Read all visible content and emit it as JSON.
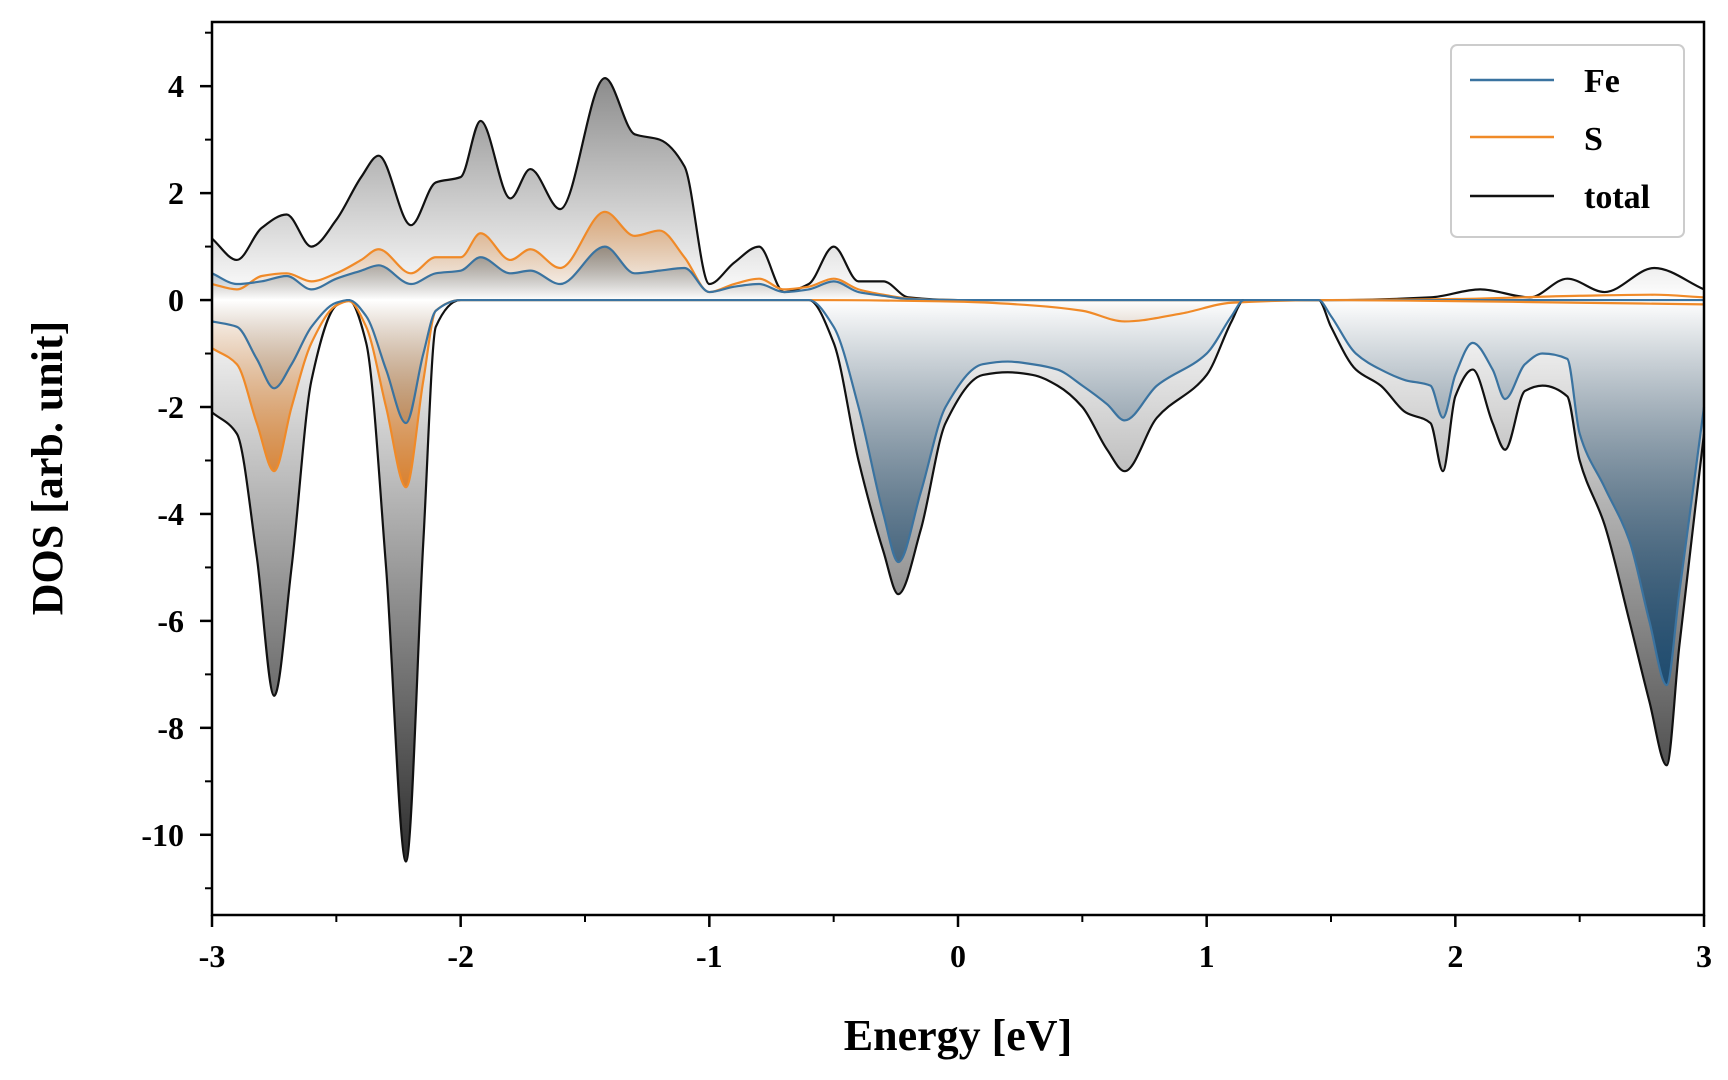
{
  "chart_data": {
    "type": "line",
    "xlabel": "Energy [eV]",
    "ylabel": "DOS [arb. unit]",
    "xlim": [
      -3,
      3
    ],
    "ylim": [
      -11.5,
      5.2
    ],
    "xticks": [
      -3,
      -2,
      -1,
      0,
      1,
      2,
      3
    ],
    "xtick_labels": [
      "-3",
      "-2",
      "-1",
      "0",
      "1",
      "2",
      "3"
    ],
    "yticks": [
      -10,
      -8,
      -6,
      -4,
      -2,
      0,
      2,
      4
    ],
    "ytick_labels": [
      "-10",
      "-8",
      "-6",
      "-4",
      "-2",
      "0",
      "2",
      "4"
    ],
    "grid": false,
    "legend_position": "top-right",
    "colors": {
      "Fe": "#3a73a0",
      "S": "#f08a28",
      "total": "#111111"
    },
    "series": [
      {
        "name": "Fe",
        "spin": "up",
        "x": [
          -3.0,
          -2.9,
          -2.8,
          -2.7,
          -2.6,
          -2.5,
          -2.4,
          -2.33,
          -2.2,
          -2.1,
          -2.0,
          -1.92,
          -1.8,
          -1.72,
          -1.6,
          -1.42,
          -1.3,
          -1.2,
          -1.1,
          -1.0,
          -0.9,
          -0.8,
          -0.7,
          -0.6,
          -0.5,
          -0.4,
          -0.3,
          -0.2,
          0.0,
          0.5,
          1.0,
          1.5,
          2.0,
          2.5,
          3.0
        ],
        "values": [
          0.5,
          0.3,
          0.35,
          0.45,
          0.2,
          0.4,
          0.55,
          0.65,
          0.3,
          0.5,
          0.55,
          0.8,
          0.5,
          0.55,
          0.3,
          1.0,
          0.5,
          0.55,
          0.6,
          0.15,
          0.25,
          0.3,
          0.15,
          0.2,
          0.35,
          0.15,
          0.08,
          0.02,
          0.0,
          0.0,
          0.0,
          0.0,
          0.0,
          0.0,
          0.0
        ]
      },
      {
        "name": "S",
        "spin": "up",
        "x": [
          -3.0,
          -2.9,
          -2.8,
          -2.7,
          -2.6,
          -2.5,
          -2.4,
          -2.33,
          -2.2,
          -2.1,
          -2.0,
          -1.92,
          -1.8,
          -1.72,
          -1.6,
          -1.42,
          -1.3,
          -1.2,
          -1.1,
          -1.0,
          -0.9,
          -0.8,
          -0.7,
          -0.6,
          -0.5,
          -0.4,
          -0.3,
          -0.2,
          0.0,
          0.5,
          1.0,
          1.2,
          1.5,
          2.0,
          2.5,
          2.8,
          3.0
        ],
        "values": [
          0.3,
          0.2,
          0.45,
          0.5,
          0.35,
          0.5,
          0.75,
          0.95,
          0.5,
          0.8,
          0.8,
          1.25,
          0.75,
          0.95,
          0.6,
          1.65,
          1.2,
          1.3,
          0.8,
          0.15,
          0.3,
          0.4,
          0.2,
          0.25,
          0.4,
          0.2,
          0.1,
          0.03,
          0.0,
          0.0,
          0.0,
          0.0,
          0.0,
          0.02,
          0.08,
          0.1,
          0.05
        ]
      },
      {
        "name": "total",
        "spin": "up",
        "x": [
          -3.0,
          -2.9,
          -2.8,
          -2.7,
          -2.6,
          -2.5,
          -2.4,
          -2.33,
          -2.2,
          -2.1,
          -2.0,
          -1.92,
          -1.8,
          -1.72,
          -1.6,
          -1.42,
          -1.3,
          -1.2,
          -1.1,
          -1.0,
          -0.9,
          -0.8,
          -0.7,
          -0.6,
          -0.5,
          -0.4,
          -0.3,
          -0.2,
          0.0,
          0.5,
          1.0,
          1.5,
          1.9,
          2.1,
          2.3,
          2.45,
          2.6,
          2.8,
          3.0
        ],
        "values": [
          1.15,
          0.75,
          1.35,
          1.6,
          1.0,
          1.5,
          2.3,
          2.7,
          1.4,
          2.2,
          2.3,
          3.35,
          1.9,
          2.45,
          1.7,
          4.15,
          3.1,
          3.0,
          2.5,
          0.3,
          0.7,
          1.0,
          0.15,
          0.3,
          1.0,
          0.35,
          0.35,
          0.05,
          0.0,
          0.0,
          0.0,
          0.0,
          0.05,
          0.2,
          0.05,
          0.4,
          0.15,
          0.6,
          0.2
        ]
      },
      {
        "name": "Fe",
        "spin": "down",
        "x": [
          -3.0,
          -2.9,
          -2.82,
          -2.75,
          -2.68,
          -2.6,
          -2.5,
          -2.45,
          -2.38,
          -2.3,
          -2.22,
          -2.15,
          -2.1,
          -2.0,
          -0.6,
          -0.5,
          -0.4,
          -0.3,
          -0.24,
          -0.15,
          -0.05,
          0.1,
          0.2,
          0.3,
          0.4,
          0.5,
          0.6,
          0.67,
          0.8,
          1.0,
          1.1,
          1.15,
          1.45,
          1.5,
          1.6,
          1.7,
          1.8,
          1.9,
          1.95,
          2.0,
          2.07,
          2.15,
          2.2,
          2.28,
          2.35,
          2.45,
          2.5,
          2.6,
          2.7,
          2.78,
          2.85,
          2.9,
          3.0
        ],
        "values": [
          -0.4,
          -0.5,
          -1.1,
          -1.65,
          -1.2,
          -0.5,
          -0.05,
          0.0,
          -0.3,
          -1.3,
          -2.3,
          -1.0,
          -0.2,
          0.0,
          0.0,
          -0.5,
          -2.0,
          -4.0,
          -4.9,
          -3.6,
          -2.0,
          -1.2,
          -1.15,
          -1.2,
          -1.3,
          -1.6,
          -1.95,
          -2.25,
          -1.6,
          -1.0,
          -0.3,
          0.0,
          0.0,
          -0.3,
          -1.0,
          -1.3,
          -1.5,
          -1.6,
          -2.2,
          -1.4,
          -0.8,
          -1.3,
          -1.85,
          -1.2,
          -1.0,
          -1.1,
          -2.5,
          -3.5,
          -4.5,
          -6.0,
          -7.2,
          -5.5,
          -2.0
        ]
      },
      {
        "name": "S",
        "spin": "down",
        "x": [
          -3.0,
          -2.9,
          -2.82,
          -2.75,
          -2.68,
          -2.6,
          -2.5,
          -2.45,
          -2.38,
          -2.3,
          -2.22,
          -2.15,
          -2.1,
          -2.0,
          -0.6,
          0.0,
          0.3,
          0.5,
          0.67,
          0.9,
          1.1,
          1.5,
          2.0,
          2.5,
          3.0
        ],
        "values": [
          -0.9,
          -1.2,
          -2.3,
          -3.2,
          -2.0,
          -0.8,
          -0.1,
          -0.02,
          -0.5,
          -2.0,
          -3.5,
          -1.5,
          -0.2,
          0.0,
          0.0,
          -0.03,
          -0.1,
          -0.2,
          -0.4,
          -0.25,
          -0.05,
          0.0,
          -0.02,
          -0.05,
          -0.08
        ]
      },
      {
        "name": "total",
        "spin": "down",
        "x": [
          -3.0,
          -2.9,
          -2.82,
          -2.75,
          -2.68,
          -2.6,
          -2.5,
          -2.45,
          -2.38,
          -2.3,
          -2.22,
          -2.15,
          -2.1,
          -2.0,
          -0.6,
          -0.5,
          -0.4,
          -0.3,
          -0.24,
          -0.15,
          -0.05,
          0.1,
          0.2,
          0.3,
          0.4,
          0.5,
          0.6,
          0.67,
          0.8,
          1.0,
          1.1,
          1.15,
          1.45,
          1.5,
          1.6,
          1.7,
          1.8,
          1.9,
          1.95,
          2.0,
          2.07,
          2.15,
          2.2,
          2.28,
          2.35,
          2.45,
          2.5,
          2.6,
          2.7,
          2.78,
          2.85,
          2.9,
          3.0
        ],
        "values": [
          -2.1,
          -2.5,
          -4.8,
          -7.4,
          -5.0,
          -1.5,
          -0.1,
          0.0,
          -0.8,
          -5.0,
          -10.5,
          -4.5,
          -0.5,
          0.0,
          0.0,
          -0.8,
          -3.0,
          -4.7,
          -5.5,
          -4.3,
          -2.3,
          -1.4,
          -1.35,
          -1.4,
          -1.6,
          -2.0,
          -2.8,
          -3.2,
          -2.2,
          -1.4,
          -0.4,
          0.0,
          0.0,
          -0.5,
          -1.3,
          -1.6,
          -2.1,
          -2.3,
          -3.2,
          -1.8,
          -1.3,
          -2.3,
          -2.8,
          -1.7,
          -1.6,
          -1.8,
          -3.0,
          -4.2,
          -6.0,
          -7.5,
          -8.7,
          -6.5,
          -2.5
        ]
      }
    ]
  }
}
